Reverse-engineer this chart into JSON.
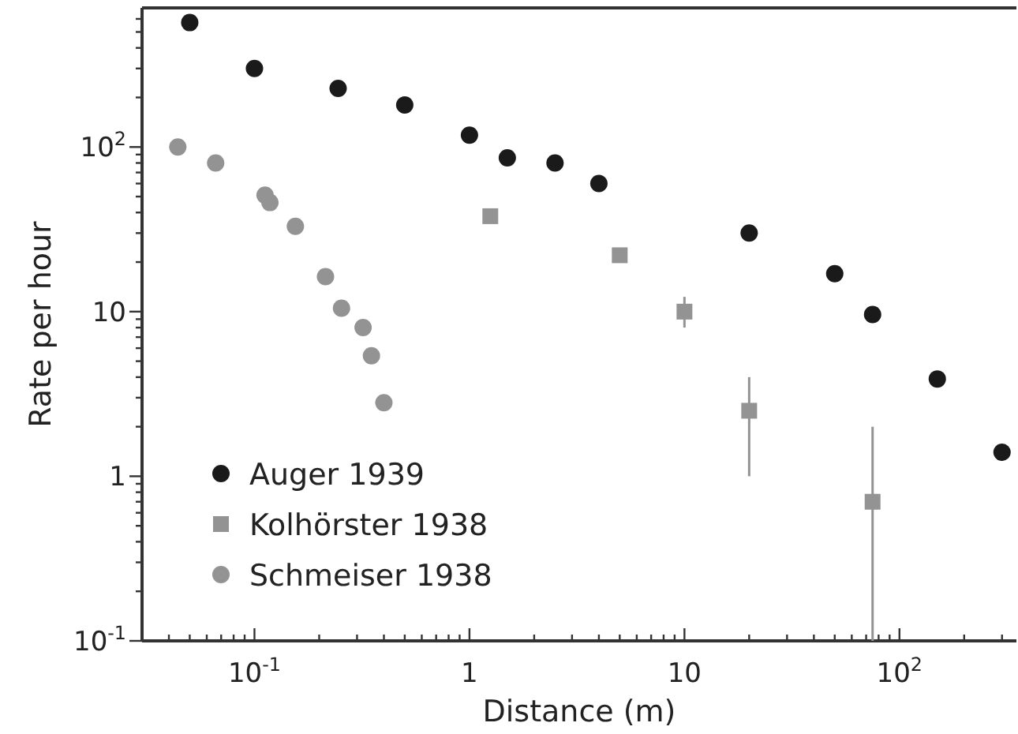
{
  "chart_data": {
    "type": "scatter",
    "xlabel": "Distance (m)",
    "ylabel": "Rate per hour",
    "log": "xy",
    "grid": false,
    "legend": "bottom left",
    "xlim": [
      0.03,
      350
    ],
    "ylim": [
      0.1,
      700
    ],
    "xticks": [
      {
        "value": 0.04,
        "label": null
      },
      {
        "value": 0.05,
        "label": null
      },
      {
        "value": 0.06,
        "label": null
      },
      {
        "value": 0.07,
        "label": null
      },
      {
        "value": 0.08,
        "label": null
      },
      {
        "value": 0.09,
        "label": null
      },
      {
        "value": 0.1,
        "label": "10$^{-1}$"
      },
      {
        "value": 0.2,
        "label": null
      },
      {
        "value": 0.3,
        "label": null
      },
      {
        "value": 0.4,
        "label": null
      },
      {
        "value": 0.5,
        "label": null
      },
      {
        "value": 0.6,
        "label": null
      },
      {
        "value": 0.7,
        "label": null
      },
      {
        "value": 0.8,
        "label": null
      },
      {
        "value": 0.9,
        "label": null
      },
      1,
      {
        "value": 2,
        "label": null
      },
      {
        "value": 3,
        "label": null
      },
      {
        "value": 4,
        "label": null
      },
      {
        "value": 5,
        "label": null
      },
      {
        "value": 6,
        "label": null
      },
      {
        "value": 7,
        "label": null
      },
      {
        "value": 8,
        "label": null
      },
      {
        "value": 9,
        "label": null
      },
      10,
      {
        "value": 20,
        "label": null
      },
      {
        "value": 30,
        "label": null
      },
      {
        "value": 40,
        "label": null
      },
      {
        "value": 50,
        "label": null
      },
      {
        "value": 60,
        "label": null
      },
      {
        "value": 70,
        "label": null
      },
      {
        "value": 80,
        "label": null
      },
      {
        "value": 90,
        "label": null
      },
      {
        "value": 100,
        "label": "10$^{2}$"
      },
      {
        "value": 200,
        "label": null
      },
      {
        "value": 300,
        "label": null
      }
    ],
    "yticks": [
      {
        "value": 0.1,
        "label": "10$^{-1}$"
      },
      {
        "value": 0.2,
        "label": null
      },
      {
        "value": 0.3,
        "label": null
      },
      {
        "value": 0.4,
        "label": null
      },
      {
        "value": 0.5,
        "label": null
      },
      {
        "value": 0.6,
        "label": null
      },
      {
        "value": 0.7,
        "label": null
      },
      {
        "value": 0.8,
        "label": null
      },
      {
        "value": 0.9,
        "label": null
      },
      1,
      {
        "value": 2,
        "label": null
      },
      {
        "value": 3,
        "label": null
      },
      {
        "value": 4,
        "label": null
      },
      {
        "value": 5,
        "label": null
      },
      {
        "value": 6,
        "label": null
      },
      {
        "value": 7,
        "label": null
      },
      {
        "value": 8,
        "label": null
      },
      {
        "value": 9,
        "label": null
      },
      10,
      {
        "value": 20,
        "label": null
      },
      {
        "value": 30,
        "label": null
      },
      {
        "value": 40,
        "label": null
      },
      {
        "value": 50,
        "label": null
      },
      {
        "value": 60,
        "label": null
      },
      {
        "value": 70,
        "label": null
      },
      {
        "value": 80,
        "label": null
      },
      {
        "value": 90,
        "label": null
      },
      {
        "value": 100,
        "label": "10$^{2}$"
      },
      {
        "value": 200,
        "label": null
      },
      {
        "value": 300,
        "label": null
      },
      {
        "value": 400,
        "label": null
      },
      {
        "value": 500,
        "label": null
      },
      {
        "value": 600,
        "label": null
      }
    ],
    "series": [
      {
        "name": "Auger 1939",
        "color": "#1a1a1a",
        "marker": "circle",
        "x": [
          0.05,
          0.1,
          0.245,
          0.5,
          1,
          1.5,
          2.5,
          4,
          20,
          50,
          75,
          150,
          300
        ],
        "values": [
          570,
          300,
          227,
          180,
          118,
          86,
          80,
          60,
          30,
          17,
          9.6,
          3.9,
          1.4
        ]
      },
      {
        "name": "Kolhörster 1938",
        "color": "#939393",
        "marker": "square",
        "x": [
          1.25,
          5,
          10,
          20,
          75
        ],
        "values": [
          38,
          22,
          10,
          2.5,
          0.7
        ],
        "errors": [
          null,
          null,
          [
            8,
            12.3
          ],
          [
            1,
            4
          ],
          [
            0.1,
            2
          ]
        ]
      },
      {
        "name": "Schmeiser 1938",
        "color": "#939393",
        "marker": "circle",
        "x": [
          0.044,
          0.066,
          0.112,
          0.118,
          0.155,
          0.214,
          0.254,
          0.32,
          0.35,
          0.4
        ],
        "values": [
          100,
          80,
          51,
          46,
          33,
          16.3,
          10.5,
          8,
          5.4,
          2.8
        ]
      }
    ]
  }
}
